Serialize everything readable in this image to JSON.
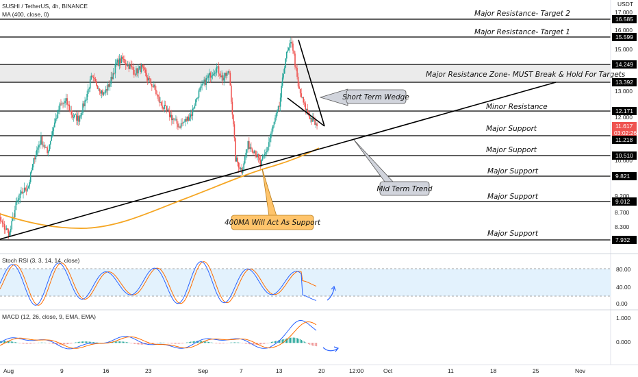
{
  "header": {
    "symbol_line": "SUSHI / TetherUS, 4h, BINANCE",
    "ma_line": "MA (400, close, 0)",
    "currency": "USDT"
  },
  "annotations": {
    "target2": "Major Resistance- Target 2",
    "target1": "Major Resistance- Target 1",
    "zone": "Major Resistance Zone- MUST Break & Hold For Targets",
    "minor": "Minor Resistance",
    "support1": "Major Support",
    "support2": "Major Support",
    "support3": "Major Support",
    "support4": "Major Support",
    "support5": "Major Support",
    "wedge_callout": "Short Term Wedge",
    "trend_callout": "Mid Term Trend",
    "ma_callout": "400MA Will Act As Support"
  },
  "price_axis": {
    "ticks": [
      "17.000",
      "16.000",
      "15.000",
      "13.000",
      "12.000",
      "10.000",
      "9.200",
      "8.700",
      "8.300"
    ],
    "level_labels": [
      "16.585",
      "15.599",
      "14.249",
      "13.392",
      "12.171",
      "11.218",
      "10.510",
      "9.821",
      "9.012",
      "7.932"
    ],
    "current_price": "11.617",
    "countdown": "03:02:26"
  },
  "stoch_rsi": {
    "title": "Stoch RSI (3, 3, 14, 14, close)",
    "ticks": [
      "80.00",
      "40.00",
      "0.00"
    ]
  },
  "macd": {
    "title": "MACD (12, 26, close, 9, EMA, EMA)",
    "ticks": [
      "1.000",
      "0.000"
    ]
  },
  "time_axis": {
    "labels": [
      "Aug",
      "9",
      "16",
      "23",
      "Sep",
      "7",
      "13",
      "20",
      "12:00",
      "Oct",
      "11",
      "18",
      "25",
      "Nov"
    ]
  },
  "colors": {
    "up": "#26a69a",
    "down": "#ef5350",
    "ma": "#f5a623",
    "stoch_k": "#2962ff",
    "stoch_d": "#ff6d00",
    "zone": "#ebebeb",
    "callout": "#d1d4dc",
    "ma_callout": "#ffc46b",
    "price_tag": "#ef5350",
    "label_box": "#000000"
  },
  "chart_data": {
    "type": "candlestick",
    "title": "SUSHI / TetherUS, 4h, BINANCE",
    "y_scale": "log",
    "y_range": [
      7.7,
      17.3
    ],
    "x_range": [
      "Aug 1",
      "Nov 6"
    ],
    "horizontal_levels": [
      16.585,
      15.599,
      14.249,
      13.392,
      12.171,
      11.218,
      10.51,
      9.821,
      9.012,
      7.932
    ],
    "resistance_zone": [
      13.392,
      14.249
    ],
    "current_price": 11.617,
    "trendline": {
      "from": [
        "Aug 1",
        7.93
      ],
      "to": [
        "Oct 29",
        13.45
      ]
    },
    "close_path": [
      [
        "Jul 30",
        8.9
      ],
      [
        "Aug 1",
        8.3
      ],
      [
        "Aug 2",
        8.1
      ],
      [
        "Aug 3",
        8.9
      ],
      [
        "Aug 4",
        9.3
      ],
      [
        "Aug 5",
        9.5
      ],
      [
        "Aug 6",
        10.5
      ],
      [
        "Aug 7",
        11.1
      ],
      [
        "Aug 8",
        10.6
      ],
      [
        "Aug 9",
        11.6
      ],
      [
        "Aug 10",
        12.4
      ],
      [
        "Aug 11",
        12.6
      ],
      [
        "Aug 12",
        12.0
      ],
      [
        "Aug 13",
        11.9
      ],
      [
        "Aug 14",
        12.6
      ],
      [
        "Aug 15",
        13.6
      ],
      [
        "Aug 16",
        13.3
      ],
      [
        "Aug 17",
        12.9
      ],
      [
        "Aug 18",
        13.4
      ],
      [
        "Aug 19",
        14.3
      ],
      [
        "Aug 20",
        14.5
      ],
      [
        "Aug 21",
        14.2
      ],
      [
        "Aug 22",
        13.9
      ],
      [
        "Aug 23",
        14.1
      ],
      [
        "Aug 24",
        13.6
      ],
      [
        "Aug 25",
        13.2
      ],
      [
        "Aug 26",
        12.5
      ],
      [
        "Aug 27",
        12.2
      ],
      [
        "Aug 28",
        11.9
      ],
      [
        "Aug 29",
        11.6
      ],
      [
        "Aug 30",
        11.8
      ],
      [
        "Aug 31",
        12.1
      ],
      [
        "Sep 1",
        12.9
      ],
      [
        "Sep 2",
        13.4
      ],
      [
        "Sep 3",
        13.8
      ],
      [
        "Sep 4",
        14.1
      ],
      [
        "Sep 5",
        13.6
      ],
      [
        "Sep 6",
        13.9
      ],
      [
        "Sep 7",
        10.4
      ],
      [
        "Sep 8",
        10.0
      ],
      [
        "Sep 9",
        10.9
      ],
      [
        "Sep 10",
        10.7
      ],
      [
        "Sep 11",
        10.2
      ],
      [
        "Sep 12",
        10.7
      ],
      [
        "Sep 13",
        11.6
      ],
      [
        "Sep 14",
        12.4
      ],
      [
        "Sep 15",
        14.6
      ],
      [
        "Sep 16",
        15.4
      ],
      [
        "Sep 17",
        13.2
      ],
      [
        "Sep 18",
        12.4
      ],
      [
        "Sep 19",
        11.9
      ],
      [
        "Sep 20",
        11.6
      ]
    ],
    "ma400_path": [
      [
        "Jul 30",
        8.8
      ],
      [
        "Aug 3",
        8.4
      ],
      [
        "Aug 7",
        8.3
      ],
      [
        "Aug 12",
        8.55
      ],
      [
        "Aug 17",
        8.95
      ],
      [
        "Aug 22",
        9.3
      ],
      [
        "Aug 27",
        9.55
      ],
      [
        "Sep 1",
        9.8
      ],
      [
        "Sep 6",
        10.0
      ],
      [
        "Sep 11",
        10.25
      ],
      [
        "Sep 16",
        10.55
      ],
      [
        "Sep 20",
        10.75
      ]
    ],
    "stoch_rsi": {
      "ylim": [
        0,
        100
      ],
      "bands": [
        20,
        80
      ],
      "last_k": 25,
      "last_d": 20
    },
    "macd": {
      "ylim": [
        -0.5,
        1.2
      ],
      "peak": {
        "date": "Sep 16",
        "value": 0.95
      },
      "last": -0.3
    }
  }
}
